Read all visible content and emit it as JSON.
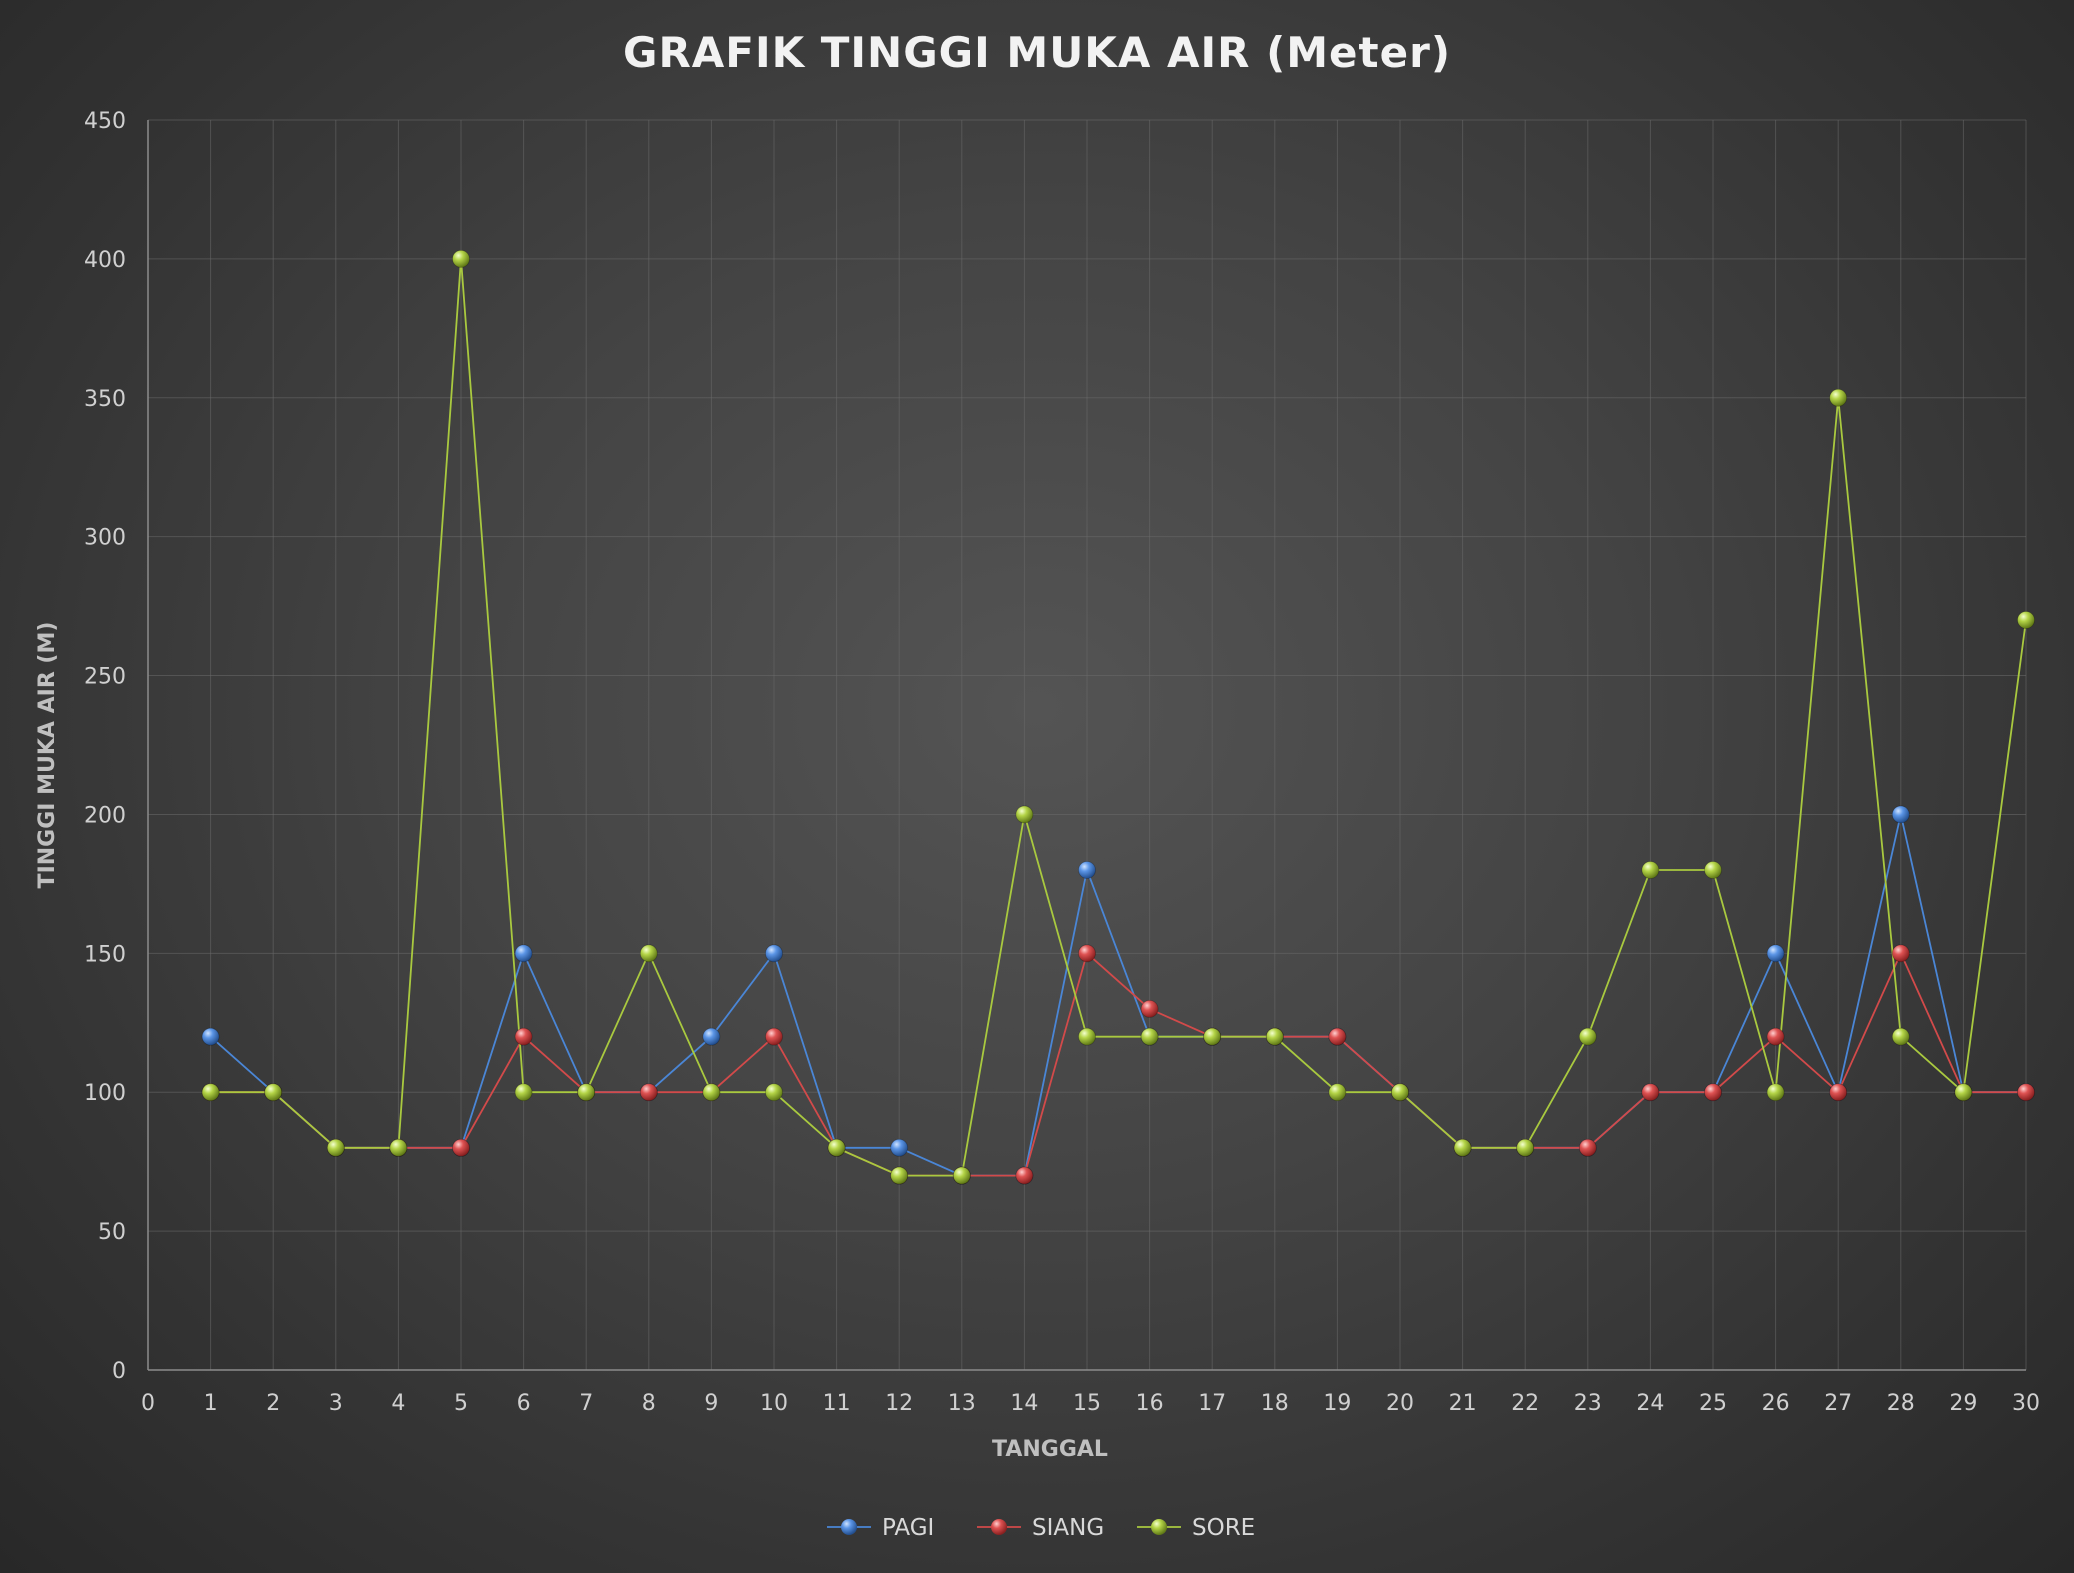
{
  "chart_data": {
    "type": "line",
    "title": "GRAFIK TINGGI MUKA AIR (Meter)",
    "xlabel": "TANGGAL",
    "ylabel": "TINGGI MUKA AIR (M)",
    "xlim": [
      0,
      30
    ],
    "ylim": [
      0,
      450
    ],
    "x_ticks": [
      "0",
      "1",
      "2",
      "3",
      "4",
      "5",
      "6",
      "7",
      "8",
      "9",
      "10",
      "11",
      "12",
      "13",
      "14",
      "15",
      "16",
      "17",
      "18",
      "19",
      "20",
      "21",
      "22",
      "23",
      "24",
      "25",
      "26",
      "27",
      "28",
      "29",
      "30"
    ],
    "y_ticks": [
      "0",
      "50",
      "100",
      "150",
      "200",
      "250",
      "300",
      "350",
      "400",
      "450"
    ],
    "x": [
      1,
      2,
      3,
      4,
      5,
      6,
      7,
      8,
      9,
      10,
      11,
      12,
      13,
      14,
      15,
      16,
      17,
      18,
      19,
      20,
      21,
      22,
      23,
      24,
      25,
      26,
      27,
      28,
      29,
      30
    ],
    "grid": true,
    "legend_position": "bottom",
    "series": [
      {
        "name": "PAGI",
        "color": "#4a86d6",
        "values": [
          120,
          100,
          80,
          80,
          80,
          150,
          100,
          100,
          120,
          150,
          80,
          80,
          70,
          70,
          180,
          120,
          120,
          120,
          120,
          100,
          80,
          80,
          80,
          100,
          100,
          150,
          100,
          200,
          100,
          100
        ]
      },
      {
        "name": "SIANG",
        "color": "#d24a4a",
        "values": [
          100,
          100,
          80,
          80,
          80,
          120,
          100,
          100,
          100,
          120,
          80,
          70,
          70,
          70,
          150,
          130,
          120,
          120,
          120,
          100,
          80,
          80,
          80,
          100,
          100,
          120,
          100,
          150,
          100,
          100
        ]
      },
      {
        "name": "SORE",
        "color": "#a9c93f",
        "values": [
          100,
          100,
          80,
          80,
          400,
          100,
          100,
          150,
          100,
          100,
          80,
          70,
          70,
          200,
          120,
          120,
          120,
          120,
          100,
          100,
          80,
          80,
          120,
          180,
          180,
          100,
          350,
          120,
          100,
          270
        ]
      }
    ]
  }
}
